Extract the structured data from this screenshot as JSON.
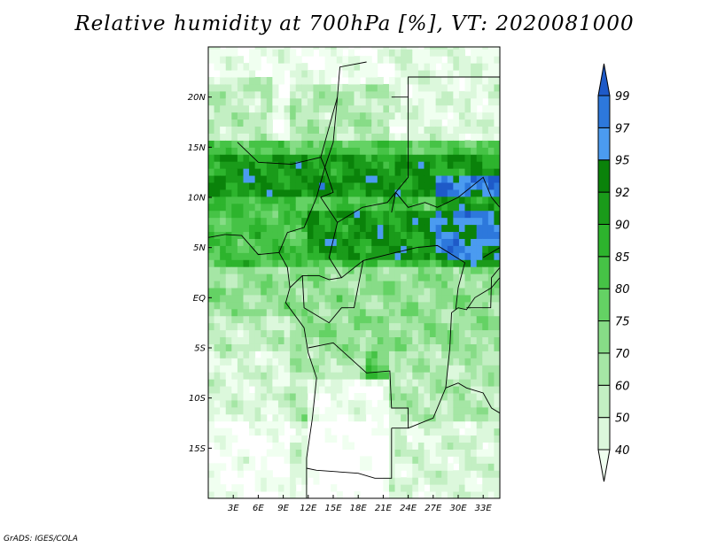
{
  "title": "Relative humidity at 700hPa [%], VT: 2020081000",
  "credit": "GrADS: IGES/COLA",
  "map": {
    "lon_range": [
      0,
      35
    ],
    "lat_range": [
      -20,
      25
    ],
    "lat_labels": [
      {
        "lat": 20,
        "text": "20N"
      },
      {
        "lat": 15,
        "text": "15N"
      },
      {
        "lat": 10,
        "text": "10N"
      },
      {
        "lat": 5,
        "text": "5N"
      },
      {
        "lat": 0,
        "text": "EQ"
      },
      {
        "lat": -5,
        "text": "5S"
      },
      {
        "lat": -10,
        "text": "10S"
      },
      {
        "lat": -15,
        "text": "15S"
      }
    ],
    "lon_labels": [
      {
        "lon": 3,
        "text": "3E"
      },
      {
        "lon": 6,
        "text": "6E"
      },
      {
        "lon": 9,
        "text": "9E"
      },
      {
        "lon": 12,
        "text": "12E"
      },
      {
        "lon": 15,
        "text": "15E"
      },
      {
        "lon": 18,
        "text": "18E"
      },
      {
        "lon": 21,
        "text": "21E"
      },
      {
        "lon": 24,
        "text": "24E"
      },
      {
        "lon": 27,
        "text": "27E"
      },
      {
        "lon": 30,
        "text": "30E"
      },
      {
        "lon": 33,
        "text": "33E"
      }
    ]
  },
  "colorbar": {
    "levels": [
      "40",
      "50",
      "60",
      "70",
      "75",
      "80",
      "85",
      "90",
      "92",
      "95",
      "97",
      "99"
    ],
    "colors": [
      "#f0fff0",
      "#dcf8dc",
      "#c3efc3",
      "#a5e6a5",
      "#87dc87",
      "#64d264",
      "#46c346",
      "#2db42d",
      "#1a9b1a",
      "#0a820a",
      "#4b9bf0",
      "#2d78dc",
      "#1e5ac8"
    ]
  },
  "field": {
    "bands": [
      {
        "name": "sahel-wet-band",
        "lon": [
          0,
          35
        ],
        "lat": [
          9,
          15
        ],
        "level": 9
      },
      {
        "name": "central-wet-band",
        "lon": [
          10,
          35
        ],
        "lat": [
          3,
          9
        ],
        "level": 8
      }
    ]
  }
}
